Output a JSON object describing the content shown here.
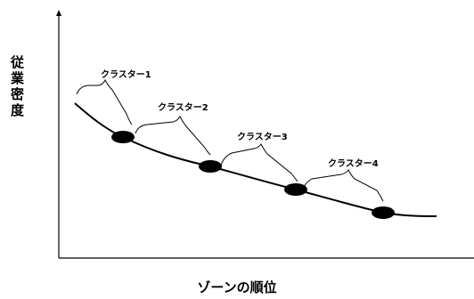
{
  "axes": {
    "y_label": "従業密度",
    "x_label": "ゾーンの順位"
  },
  "clusters": [
    {
      "label": "クラスター1"
    },
    {
      "label": "クラスター2"
    },
    {
      "label": "クラスター3"
    },
    {
      "label": "クラスター4"
    }
  ]
}
